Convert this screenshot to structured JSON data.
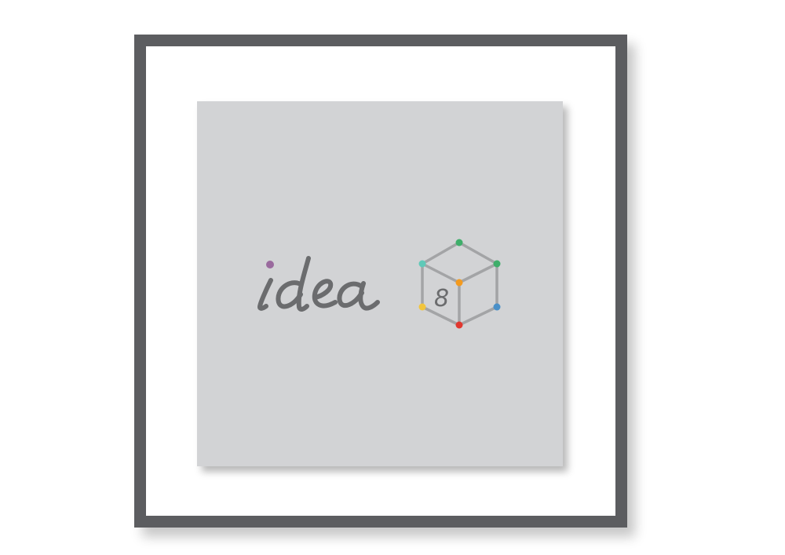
{
  "artwork": {
    "logo_wordmark": "idea",
    "logo_numeral": "8",
    "logo_name": "idea8-logo"
  },
  "colors": {
    "frame": "#5c5d60",
    "mat": "#ffffff",
    "card": "#d2d3d5",
    "wordmark": "#6b6c6e",
    "cube_edges": "#a3a4a6",
    "dot_purple": "#9a6a9e",
    "dot_green": "#3fae6a",
    "dot_teal": "#5fc9b8",
    "dot_orange": "#f39a1e",
    "dot_yellow": "#f2c53d",
    "dot_red": "#e1372f",
    "dot_blue": "#4a90c8"
  },
  "icons": {
    "logo": "idea8-cube-logo"
  }
}
